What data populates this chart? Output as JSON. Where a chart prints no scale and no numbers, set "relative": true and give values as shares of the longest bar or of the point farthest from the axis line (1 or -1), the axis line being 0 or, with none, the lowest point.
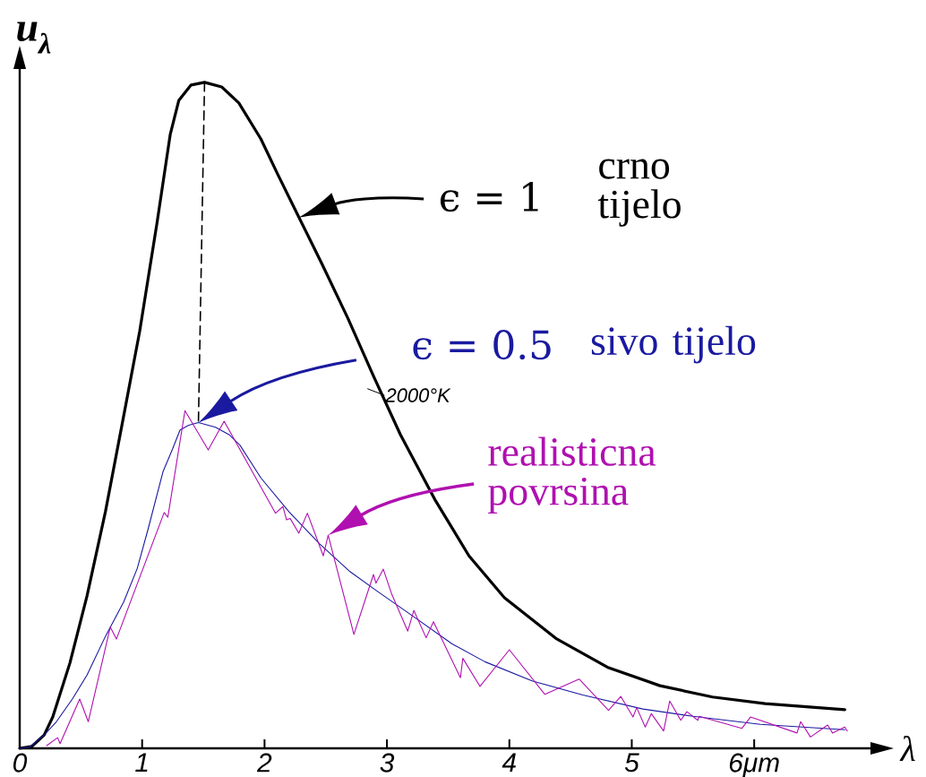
{
  "chart_data": {
    "type": "line",
    "relative": true,
    "xlabel": "λ",
    "ylabel": "u$_{λ}$",
    "xlim": [
      0,
      6.95
    ],
    "xticks": [
      0,
      1,
      2,
      3,
      4,
      5,
      {
        "value": 6,
        "label": "6μm"
      }
    ],
    "marker": "none",
    "line_style": "solid",
    "series": [
      {
        "name": "crno tijelo",
        "color": "#000000",
        "x": [
          0,
          0.1,
          0.2,
          0.27,
          0.41,
          0.55,
          0.7,
          0.84,
          0.98,
          1.12,
          1.23,
          1.3,
          1.4,
          1.51,
          1.65,
          1.79,
          1.97,
          2.11,
          2.29,
          2.47,
          2.68,
          2.89,
          3.11,
          3.39,
          3.67,
          3.96,
          4.38,
          4.81,
          5.23,
          5.66,
          6.09,
          6.74
        ],
        "values": [
          0,
          0.003,
          0.02,
          0.047,
          0.128,
          0.229,
          0.355,
          0.49,
          0.626,
          0.787,
          0.922,
          0.973,
          0.996,
          1.0,
          0.993,
          0.969,
          0.915,
          0.861,
          0.794,
          0.727,
          0.646,
          0.559,
          0.471,
          0.374,
          0.289,
          0.226,
          0.165,
          0.121,
          0.094,
          0.077,
          0.067,
          0.058
        ]
      },
      {
        "name": "sivo tijelo",
        "color": "#1a1aa0",
        "x": [
          0,
          0.08,
          0.2,
          0.3,
          0.43,
          0.55,
          0.7,
          0.85,
          0.96,
          1.05,
          1.17,
          1.25,
          1.31,
          1.38,
          1.46,
          1.6,
          1.71,
          1.8,
          1.97,
          2.2,
          2.45,
          2.7,
          2.92,
          3.2,
          3.53,
          3.8,
          4.19,
          4.6,
          5.09,
          5.5,
          6.05,
          6.74
        ],
        "values": [
          0,
          0.002,
          0.02,
          0.04,
          0.074,
          0.11,
          0.168,
          0.22,
          0.27,
          0.33,
          0.415,
          0.45,
          0.478,
          0.485,
          0.489,
          0.482,
          0.471,
          0.455,
          0.406,
          0.355,
          0.307,
          0.265,
          0.236,
          0.2,
          0.157,
          0.13,
          0.101,
          0.08,
          0.059,
          0.048,
          0.036,
          0.028
        ]
      },
      {
        "name": "realisticna povrsina",
        "color": "#b010b0",
        "x": [
          0.22,
          0.31,
          0.33,
          0.49,
          0.56,
          0.74,
          0.79,
          1.18,
          1.21,
          1.35,
          1.54,
          1.67,
          2.09,
          2.15,
          2.18,
          2.21,
          2.28,
          2.35,
          2.48,
          2.52,
          2.73,
          2.89,
          2.91,
          2.97,
          3.04,
          3.17,
          3.22,
          3.32,
          3.38,
          3.6,
          3.62,
          3.76,
          4.0,
          4.29,
          4.57,
          4.81,
          4.91,
          5.01,
          5.04,
          5.11,
          5.16,
          5.26,
          5.31,
          5.4,
          5.45,
          5.54,
          5.55,
          5.9,
          5.97,
          6.35,
          6.38,
          6.46,
          6.6,
          6.64,
          6.74,
          6.76
        ],
        "values": [
          0.004,
          0.016,
          0.007,
          0.074,
          0.04,
          0.182,
          0.164,
          0.354,
          0.347,
          0.507,
          0.448,
          0.491,
          0.353,
          0.363,
          0.343,
          0.345,
          0.323,
          0.353,
          0.289,
          0.32,
          0.171,
          0.261,
          0.248,
          0.269,
          0.231,
          0.176,
          0.207,
          0.166,
          0.19,
          0.106,
          0.135,
          0.093,
          0.148,
          0.081,
          0.104,
          0.057,
          0.078,
          0.047,
          0.061,
          0.032,
          0.052,
          0.026,
          0.071,
          0.042,
          0.055,
          0.042,
          0.048,
          0.03,
          0.047,
          0.023,
          0.04,
          0.017,
          0.035,
          0.023,
          0.032,
          0.026
        ]
      },
      {
        "color": "#000000",
        "line_style": "dashed",
        "x": [
          1.51,
          1.46
        ],
        "values": [
          1.0,
          0.489
        ]
      }
    ],
    "annotations": [
      "ϵ = 1",
      "ϵ = 0.5",
      "2000°K"
    ]
  }
}
